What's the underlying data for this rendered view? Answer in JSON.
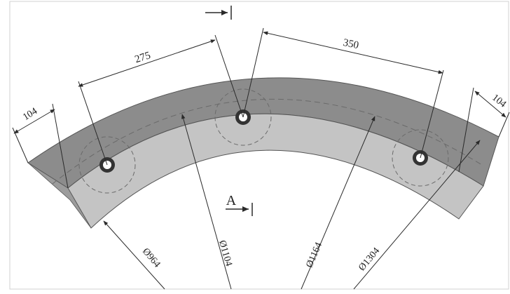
{
  "drawing": {
    "colors": {
      "outer_band": "#8c8c8c",
      "inner_band": "#c4c4c4",
      "line": "#2a2a2a",
      "dashed": "#7a7a7a",
      "background": "#ffffff"
    },
    "dimensions": {
      "width_left": "104",
      "width_right": "104",
      "pitch_left": "275",
      "pitch_right": "350",
      "dia_inner": "Ø964",
      "dia_mid": "Ø1104",
      "dia_bolt": "Ø1164",
      "dia_outer": "Ø1304"
    },
    "section": {
      "label": "A"
    }
  }
}
